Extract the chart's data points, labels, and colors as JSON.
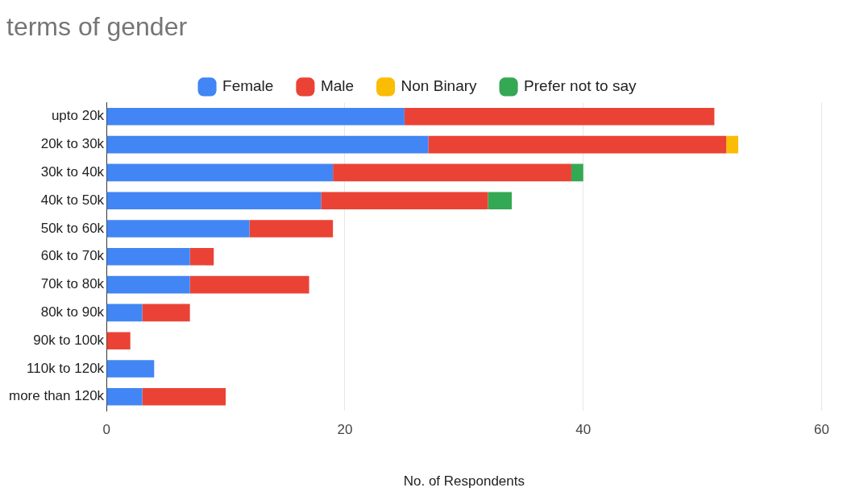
{
  "chart_data": {
    "type": "bar",
    "orientation": "horizontal",
    "stacked": true,
    "title": "terms of gender",
    "xlabel": "No. of Respondents",
    "categories": [
      "upto 20k",
      "20k to 30k",
      "30k to 40k",
      "40k to 50k",
      "50k to 60k",
      "60k to 70k",
      "70k to 80k",
      "80k to 90k",
      "90k to 100k",
      "110k to 120k",
      "more than 120k"
    ],
    "series": [
      {
        "name": "Female",
        "color": "#4285f4",
        "values": [
          25,
          27,
          19,
          18,
          12,
          7,
          7,
          3,
          0,
          4,
          3
        ]
      },
      {
        "name": "Male",
        "color": "#ea4335",
        "values": [
          26,
          25,
          20,
          14,
          7,
          2,
          10,
          4,
          2,
          0,
          7
        ]
      },
      {
        "name": "Non Binary",
        "color": "#fbbc04",
        "values": [
          0,
          1,
          0,
          0,
          0,
          0,
          0,
          0,
          0,
          0,
          0
        ]
      },
      {
        "name": "Prefer not to say",
        "color": "#34a853",
        "values": [
          0,
          0,
          1,
          2,
          0,
          0,
          0,
          0,
          0,
          0,
          0
        ]
      }
    ],
    "xlim": [
      0,
      60
    ],
    "xticks": [
      0,
      20,
      40,
      60
    ],
    "grid": "x",
    "legend": "top"
  }
}
